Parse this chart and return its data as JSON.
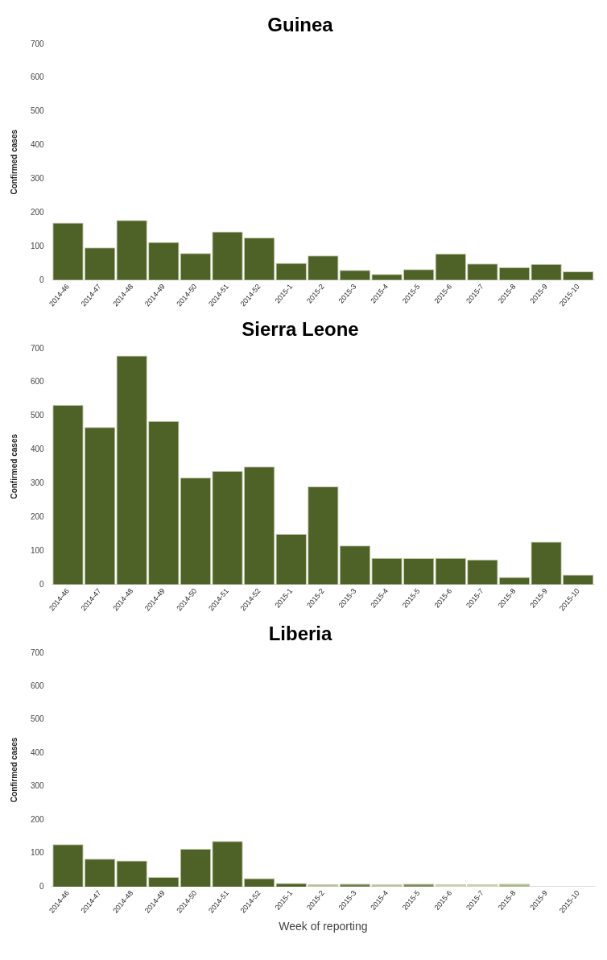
{
  "chart_data": [
    {
      "type": "bar",
      "title": "Guinea",
      "ylabel": "Confirmed cases",
      "categories": [
        "2014-46",
        "2014-47",
        "2014-48",
        "2014-49",
        "2014-50",
        "2014-51",
        "2014-52",
        "2015-1",
        "2015-2",
        "2015-3",
        "2015-4",
        "2015-5",
        "2015-6",
        "2015-7",
        "2015-8",
        "2015-9",
        "2015-10"
      ],
      "values": [
        170,
        97,
        178,
        113,
        80,
        144,
        126,
        51,
        73,
        30,
        18,
        32,
        78,
        49,
        38,
        48,
        26
      ],
      "color": "#4e6126",
      "ylim": [
        0,
        700
      ],
      "yticks": [
        0,
        100,
        200,
        300,
        400,
        500,
        600,
        700
      ],
      "grid": false,
      "legend": false
    },
    {
      "type": "bar",
      "title": "Sierra Leone",
      "ylabel": "Confirmed cases",
      "categories": [
        "2014-46",
        "2014-47",
        "2014-48",
        "2014-49",
        "2014-50",
        "2014-51",
        "2014-52",
        "2015-1",
        "2015-2",
        "2015-3",
        "2015-4",
        "2015-5",
        "2015-6",
        "2015-7",
        "2015-8",
        "2015-9",
        "2015-10"
      ],
      "values": [
        533,
        467,
        679,
        485,
        317,
        337,
        350,
        150,
        291,
        116,
        79,
        78,
        79,
        74,
        22,
        127,
        29
      ],
      "color": "#4e6126",
      "ylim": [
        0,
        700
      ],
      "yticks": [
        0,
        100,
        200,
        300,
        400,
        500,
        600,
        700
      ],
      "grid": false,
      "legend": false
    },
    {
      "type": "bar",
      "title": "Liberia",
      "ylabel": "Confirmed cases",
      "xlabel": "Week of reporting",
      "categories": [
        "2014-46",
        "2014-47",
        "2014-48",
        "2014-49",
        "2014-50",
        "2014-51",
        "2014-52",
        "2015-1",
        "2015-2",
        "2015-3",
        "2015-4",
        "2015-5",
        "2015-6",
        "2015-7",
        "2015-8",
        "2015-9",
        "2015-10"
      ],
      "values": [
        127,
        84,
        78,
        29,
        113,
        137,
        25,
        11,
        7,
        9,
        8,
        9,
        7,
        7,
        9,
        0,
        0
      ],
      "colors": [
        "#4e6126",
        "#4e6126",
        "#4e6126",
        "#4e6126",
        "#4e6126",
        "#4e6126",
        "#4e6126",
        "#4e6126",
        "#b9c29f",
        "#6f7f4a",
        "#b9c29f",
        "#7d8b58",
        "#c9cfb6",
        "#c9cfb6",
        "#aab58a",
        "#4e6126",
        "#4e6126"
      ],
      "ylim": [
        0,
        700
      ],
      "yticks": [
        0,
        100,
        200,
        300,
        400,
        500,
        600,
        700
      ],
      "grid": false,
      "legend": false
    }
  ]
}
